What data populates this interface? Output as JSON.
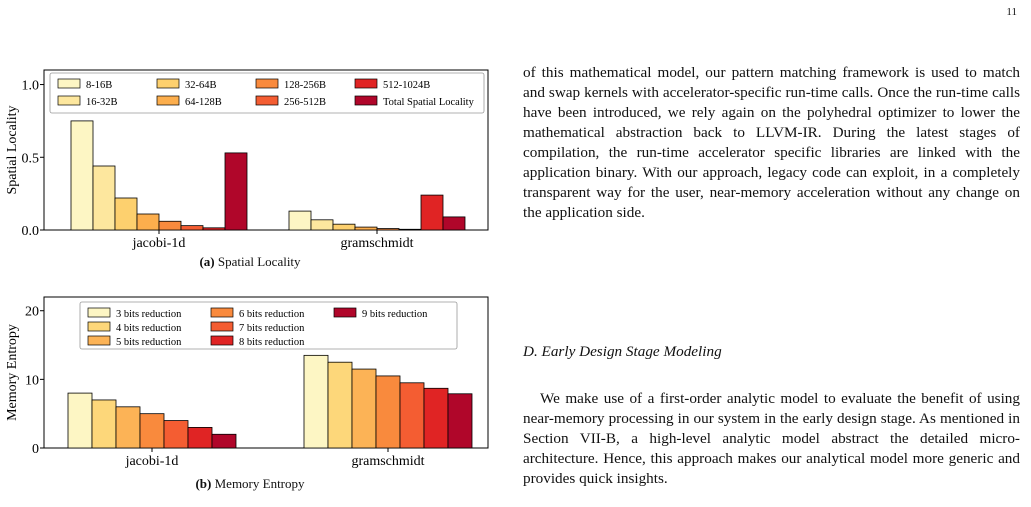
{
  "page": {
    "number": "11"
  },
  "figures": [
    {
      "caption_label": "(a)",
      "caption_text": "Spatial Locality",
      "chart_data": {
        "type": "bar",
        "title": "",
        "xlabel": "",
        "ylabel": "Spatial Locality",
        "ylim": [
          0,
          1.1
        ],
        "yticks": [
          "0.0",
          "0.5",
          "1.0"
        ],
        "yticks_values": [
          0.0,
          0.5,
          1.0
        ],
        "categories": [
          "jacobi-1d",
          "gramschmidt"
        ],
        "legend_placement": "top",
        "series": [
          {
            "name": "8-16B",
            "color": "#fdf6c4",
            "values": [
              0.75,
              0.13
            ]
          },
          {
            "name": "16-32B",
            "color": "#fde79e",
            "values": [
              0.44,
              0.07
            ]
          },
          {
            "name": "32-64B",
            "color": "#fdd06e",
            "values": [
              0.22,
              0.04
            ]
          },
          {
            "name": "64-128B",
            "color": "#fcae4d",
            "values": [
              0.11,
              0.02
            ]
          },
          {
            "name": "128-256B",
            "color": "#f98a3d",
            "values": [
              0.06,
              0.01
            ]
          },
          {
            "name": "256-512B",
            "color": "#f45d32",
            "values": [
              0.03,
              0.005
            ]
          },
          {
            "name": "512-1024B",
            "color": "#e02424",
            "values": [
              0.015,
              0.24
            ]
          },
          {
            "name": "Total Spatial Locality",
            "color": "#b0062a",
            "values": [
              0.53,
              0.09
            ]
          }
        ]
      }
    },
    {
      "caption_label": "(b)",
      "caption_text": "Memory Entropy",
      "chart_data": {
        "type": "bar",
        "title": "",
        "xlabel": "",
        "ylabel": "Memory Entropy",
        "ylim": [
          0,
          22
        ],
        "yticks": [
          "0",
          "10",
          "20"
        ],
        "yticks_values": [
          0,
          10,
          20
        ],
        "categories": [
          "jacobi-1d",
          "gramschmidt"
        ],
        "legend_placement": "top",
        "series": [
          {
            "name": "3 bits reduction",
            "color": "#fdf6c4",
            "values": [
              8.0,
              13.5
            ]
          },
          {
            "name": "4 bits reduction",
            "color": "#fdd77a",
            "values": [
              7.0,
              12.5
            ]
          },
          {
            "name": "5 bits reduction",
            "color": "#fcb356",
            "values": [
              6.0,
              11.5
            ]
          },
          {
            "name": "6 bits reduction",
            "color": "#f98a3d",
            "values": [
              5.0,
              10.5
            ]
          },
          {
            "name": "7 bits reduction",
            "color": "#f45d32",
            "values": [
              4.0,
              9.5
            ]
          },
          {
            "name": "8 bits reduction",
            "color": "#e02424",
            "values": [
              3.0,
              8.7
            ]
          },
          {
            "name": "9 bits reduction",
            "color": "#b0062a",
            "values": [
              2.0,
              7.9
            ]
          }
        ]
      }
    }
  ],
  "body": {
    "para1": "of this mathematical model, our pattern matching framework is used to match and swap kernels with accelerator-specific run-time calls. Once the run-time calls have been introduced, we rely again on the polyhedral optimizer to lower the mathematical abstraction back to LLVM-IR. During the latest stages of compilation, the run-time accelerator specific libraries are linked with the application binary. With our approach, legacy code can exploit, in a completely transparent way for the user, near-memory acceleration without any change on the application side.",
    "section_heading": "D. Early Design Stage Modeling",
    "para2": "We make use of a first-order analytic model to evaluate the benefit of using near-memory processing in our system in the early design stage. As mentioned in Section VII-B, a high-level analytic model abstract the detailed micro-architecture. Hence, this approach makes our analytical model more generic and provides quick insights."
  }
}
